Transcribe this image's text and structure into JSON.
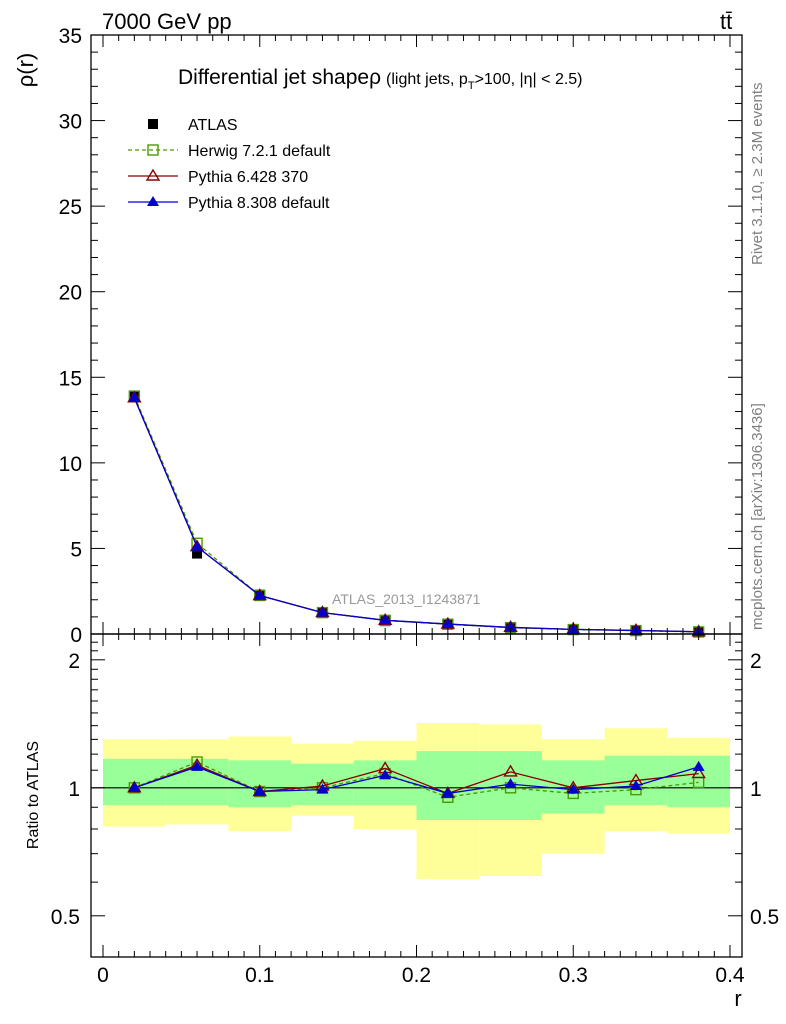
{
  "header": {
    "energy_label": "7000 GeV pp",
    "process_label": "tt̄"
  },
  "side_labels": {
    "rivet": "Rivet 3.1.10, ≥ 2.3M events",
    "mcplots": "mcplots.cern.ch [arXiv:1306.3436]"
  },
  "watermark": "ATLAS_2013_I1243871",
  "chart_data": {
    "type": "line",
    "title_main": "Differential jet shape",
    "title_rho": "ρ",
    "title_paren_open": "(light jets, p",
    "title_sub": "T",
    "title_paren_rest": ">100, |η| < 2.5)",
    "xlabel": "r",
    "ylabel_top": "ρ(r)",
    "ylabel_bottom": "Ratio to ATLAS",
    "xlim": [
      0,
      0.4
    ],
    "ylim_top": [
      0,
      35
    ],
    "ylim_bottom": [
      0.4,
      2.3
    ],
    "x_ticks": [
      "0",
      "0.1",
      "0.2",
      "0.3",
      "0.4"
    ],
    "y_ticks_top": [
      "0",
      "5",
      "10",
      "15",
      "20",
      "25",
      "30",
      "35"
    ],
    "y_ticks_bottom": [
      "0.5",
      "1",
      "2"
    ],
    "bins": [
      [
        0.0,
        0.04
      ],
      [
        0.04,
        0.08
      ],
      [
        0.08,
        0.12
      ],
      [
        0.12,
        0.16
      ],
      [
        0.16,
        0.2
      ],
      [
        0.2,
        0.24
      ],
      [
        0.24,
        0.28
      ],
      [
        0.28,
        0.32
      ],
      [
        0.32,
        0.36
      ],
      [
        0.36,
        0.4
      ]
    ],
    "x": [
      0.02,
      0.06,
      0.1,
      0.14,
      0.18,
      0.22,
      0.26,
      0.3,
      0.34,
      0.38
    ],
    "band_inner": [
      [
        0.91,
        1.17
      ],
      [
        0.91,
        1.17
      ],
      [
        0.9,
        1.16
      ],
      [
        0.91,
        1.14
      ],
      [
        0.91,
        1.16
      ],
      [
        0.84,
        1.22
      ],
      [
        0.84,
        1.22
      ],
      [
        0.87,
        1.16
      ],
      [
        0.91,
        1.19
      ],
      [
        0.9,
        1.19
      ]
    ],
    "band_outer": [
      [
        0.81,
        1.3
      ],
      [
        0.82,
        1.3
      ],
      [
        0.79,
        1.32
      ],
      [
        0.86,
        1.27
      ],
      [
        0.8,
        1.29
      ],
      [
        0.61,
        1.42
      ],
      [
        0.62,
        1.41
      ],
      [
        0.7,
        1.3
      ],
      [
        0.79,
        1.38
      ],
      [
        0.78,
        1.31
      ]
    ],
    "series": [
      {
        "name": "ATLAS",
        "color": "#000000",
        "marker": "square-filled",
        "values": [
          13.9,
          4.7,
          2.3,
          1.25,
          0.75,
          0.6,
          0.37,
          0.27,
          0.2,
          0.12
        ],
        "ratio": [
          1,
          1,
          1,
          1,
          1,
          1,
          1,
          1,
          1,
          1
        ]
      },
      {
        "name": "Herwig 7.2.1 default",
        "color": "#4a9a00",
        "marker": "square-open",
        "dashed": true,
        "values": [
          13.9,
          5.3,
          2.25,
          1.25,
          0.8,
          0.57,
          0.37,
          0.26,
          0.2,
          0.12
        ],
        "ratio": [
          1.0,
          1.15,
          0.98,
          1.0,
          1.08,
          0.95,
          1.0,
          0.97,
          0.99,
          1.03
        ]
      },
      {
        "name": "Pythia 6.428 370",
        "color": "#8b0000",
        "marker": "triangle-open",
        "values": [
          13.8,
          5.1,
          2.25,
          1.25,
          0.8,
          0.58,
          0.39,
          0.27,
          0.21,
          0.13
        ],
        "ratio": [
          1.0,
          1.13,
          0.98,
          1.01,
          1.11,
          0.97,
          1.09,
          1.0,
          1.04,
          1.08
        ]
      },
      {
        "name": "Pythia 8.308 default",
        "color": "#0000cc",
        "marker": "triangle-filled",
        "values": [
          13.8,
          5.1,
          2.25,
          1.25,
          0.8,
          0.58,
          0.38,
          0.27,
          0.2,
          0.13
        ],
        "ratio": [
          1.0,
          1.12,
          0.98,
          0.99,
          1.07,
          0.97,
          1.02,
          0.99,
          1.01,
          1.12
        ]
      }
    ]
  }
}
